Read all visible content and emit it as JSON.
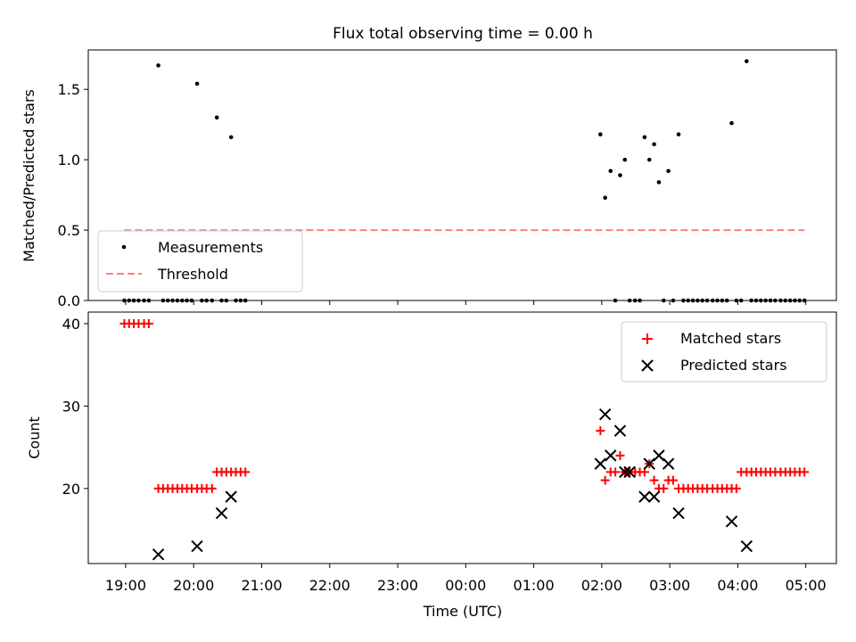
{
  "figure": {
    "title": "Flux total observing time = 0.00 h"
  },
  "chart_data": [
    {
      "type": "scatter",
      "ylabel": "Matched/Predicted stars",
      "xlim": [
        18.45,
        29.45
      ],
      "ylim": [
        0,
        1.78
      ],
      "yticks": [
        0.0,
        0.5,
        1.0,
        1.5
      ],
      "ytick_labels": [
        "0.0",
        "0.5",
        "1.0",
        "1.5"
      ],
      "series": [
        {
          "name": "Measurements",
          "color": "#000000",
          "x": [
            18.98,
            19.05,
            19.12,
            19.19,
            19.27,
            19.34,
            19.48,
            19.55,
            19.62,
            19.69,
            19.76,
            19.83,
            19.9,
            19.97,
            20.05,
            20.12,
            20.19,
            20.27,
            20.34,
            20.41,
            20.48,
            20.55,
            20.62,
            20.69,
            20.76,
            25.98,
            26.05,
            26.13,
            26.2,
            26.27,
            26.34,
            26.41,
            26.49,
            26.56,
            26.63,
            26.7,
            26.77,
            26.84,
            26.91,
            26.98,
            27.05,
            27.13,
            27.2,
            27.27,
            27.34,
            27.41,
            27.48,
            27.55,
            27.63,
            27.7,
            27.77,
            27.84,
            27.91,
            27.98,
            28.05,
            28.13,
            28.2,
            28.27,
            28.34,
            28.41,
            28.48,
            28.55,
            28.63,
            28.7,
            28.77,
            28.84,
            28.91,
            28.98
          ],
          "y": [
            0,
            0,
            0,
            0,
            0,
            0,
            1.67,
            0,
            0,
            0,
            0,
            0,
            0,
            0,
            1.54,
            0,
            0,
            0,
            1.3,
            0,
            0,
            1.16,
            0,
            0,
            0,
            1.18,
            0.73,
            0.92,
            0,
            0.89,
            1.0,
            0,
            0,
            0,
            1.16,
            1.0,
            1.11,
            0.84,
            0,
            0.92,
            0,
            1.18,
            0,
            0,
            0,
            0,
            0,
            0,
            0,
            0,
            0,
            0,
            1.26,
            0,
            0,
            1.7,
            0,
            0,
            0,
            0,
            0,
            0,
            0,
            0,
            0,
            0,
            0,
            0
          ]
        },
        {
          "name": "Threshold",
          "color": "#ff7f7f",
          "style": "dashed",
          "x": [
            18.98,
            28.98
          ],
          "y": [
            0.5,
            0.5
          ]
        }
      ],
      "legend": "lower-left"
    },
    {
      "type": "scatter",
      "xlabel": "Time (UTC)",
      "ylabel": "Count",
      "xlim": [
        18.45,
        29.45
      ],
      "ylim": [
        10.9,
        41.4
      ],
      "xticks": [
        19,
        20,
        21,
        22,
        23,
        24,
        25,
        26,
        27,
        28,
        29
      ],
      "xtick_labels": [
        "19:00",
        "20:00",
        "21:00",
        "22:00",
        "23:00",
        "00:00",
        "01:00",
        "02:00",
        "03:00",
        "04:00",
        "05:00"
      ],
      "yticks": [
        20,
        30,
        40
      ],
      "ytick_labels": [
        "20",
        "30",
        "40"
      ],
      "series": [
        {
          "name": "Matched stars",
          "marker": "plus",
          "color": "#ff0000",
          "x": [
            18.98,
            19.05,
            19.12,
            19.19,
            19.27,
            19.34,
            19.48,
            19.55,
            19.62,
            19.69,
            19.76,
            19.83,
            19.9,
            19.97,
            20.05,
            20.12,
            20.19,
            20.27,
            20.34,
            20.41,
            20.48,
            20.55,
            20.62,
            20.69,
            20.76,
            25.98,
            26.05,
            26.13,
            26.2,
            26.27,
            26.34,
            26.41,
            26.49,
            26.56,
            26.63,
            26.7,
            26.77,
            26.84,
            26.91,
            26.98,
            27.05,
            27.13,
            27.2,
            27.27,
            27.34,
            27.41,
            27.48,
            27.55,
            27.63,
            27.7,
            27.77,
            27.84,
            27.91,
            27.98,
            28.05,
            28.13,
            28.2,
            28.27,
            28.34,
            28.41,
            28.48,
            28.55,
            28.63,
            28.7,
            28.77,
            28.84,
            28.91,
            28.98
          ],
          "y": [
            40,
            40,
            40,
            40,
            40,
            40,
            20,
            20,
            20,
            20,
            20,
            20,
            20,
            20,
            20,
            20,
            20,
            20,
            22,
            22,
            22,
            22,
            22,
            22,
            22,
            27,
            21,
            22,
            22,
            24,
            22,
            22,
            22,
            22,
            22,
            23,
            21,
            20,
            20,
            21,
            21,
            20,
            20,
            20,
            20,
            20,
            20,
            20,
            20,
            20,
            20,
            20,
            20,
            20,
            22,
            22,
            22,
            22,
            22,
            22,
            22,
            22,
            22,
            22,
            22,
            22,
            22,
            22
          ]
        },
        {
          "name": "Predicted stars",
          "marker": "x",
          "color": "#000000",
          "x": [
            19.48,
            20.05,
            20.41,
            20.55,
            25.98,
            26.05,
            26.13,
            26.27,
            26.34,
            26.41,
            26.63,
            26.7,
            26.77,
            26.84,
            26.98,
            27.13,
            27.91,
            28.13
          ],
          "y": [
            12,
            13,
            17,
            19,
            23,
            29,
            24,
            27,
            22,
            22,
            19,
            23,
            19,
            24,
            23,
            17,
            16,
            13
          ]
        }
      ],
      "legend": "upper-right"
    }
  ]
}
